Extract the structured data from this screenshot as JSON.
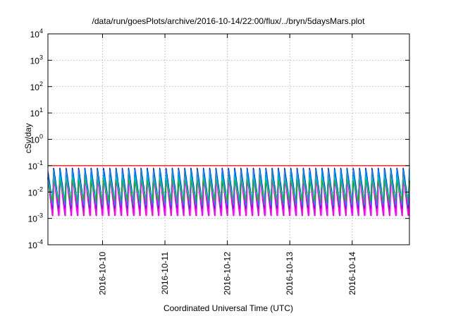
{
  "chart_data": {
    "type": "line",
    "title": "/data/run/goesPlots/archive/2016-10-14/22:00/flux/../bryn/5daysMars.plot",
    "xlabel": "Coordinated Universal Time (UTC)",
    "ylabel": "cSv/day",
    "yscale": "log",
    "ylim": [
      0.0001,
      10000
    ],
    "xlim": [
      "2016-10-09 03:00",
      "2016-10-14 22:00"
    ],
    "grid": true,
    "legend": "none",
    "y_ticks": [
      {
        "label": "10",
        "exp": "-4",
        "value": 0.0001
      },
      {
        "label": "10",
        "exp": "-3",
        "value": 0.001
      },
      {
        "label": "10",
        "exp": "-2",
        "value": 0.01
      },
      {
        "label": "10",
        "exp": "-1",
        "value": 0.1
      },
      {
        "label": "10",
        "exp": "0",
        "value": 1
      },
      {
        "label": "10",
        "exp": "1",
        "value": 10
      },
      {
        "label": "10",
        "exp": "2",
        "value": 100
      },
      {
        "label": "10",
        "exp": "3",
        "value": 1000
      },
      {
        "label": "10",
        "exp": "4",
        "value": 10000
      }
    ],
    "x_ticks": [
      "2016-10-10",
      "2016-10-11",
      "2016-10-12",
      "2016-10-13",
      "2016-10-14"
    ],
    "cycles_per_day": 10,
    "series": [
      {
        "color": "#ff00ff",
        "peak": 0.05,
        "trough": 0.0013
      },
      {
        "color": "#9400d3",
        "peak": 0.06,
        "trough": 0.002
      },
      {
        "color": "#0000ff",
        "peak": 0.09,
        "trough": 0.004
      },
      {
        "color": "#00a0ff",
        "peak": 0.07,
        "trough": 0.003
      },
      {
        "color": "#00c0c0",
        "peak": 0.04,
        "trough": 0.005
      },
      {
        "color": "#20b050",
        "peak": 0.03,
        "trough": 0.004
      },
      {
        "color": "#e00000",
        "peak": 0.1,
        "trough": 0.1
      }
    ]
  }
}
